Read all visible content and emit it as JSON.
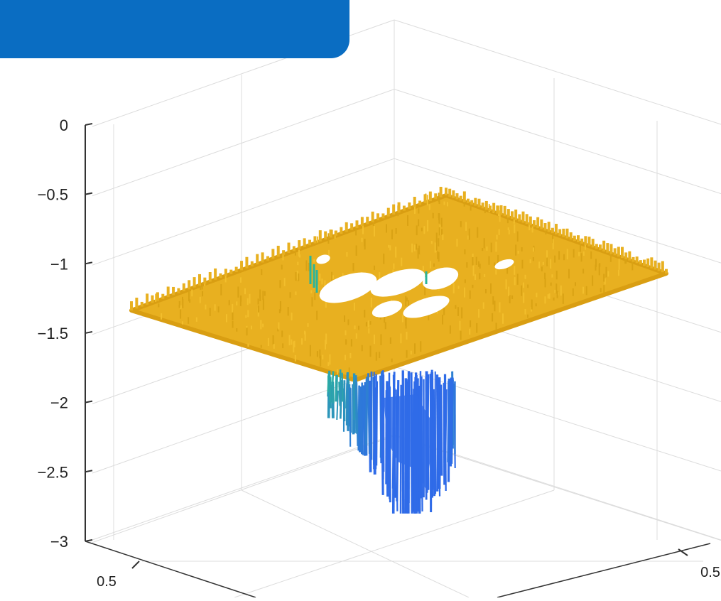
{
  "banner": {
    "text": "",
    "color": "#0a6dc2"
  },
  "chart_data": {
    "type": "surface",
    "title": "",
    "xlabel": "",
    "ylabel": "",
    "zlabel": "",
    "zlim": [
      -3,
      0
    ],
    "z_ticks": [
      0,
      -0.5,
      -1,
      -1.5,
      -2,
      -2.5,
      -3
    ],
    "z_tick_labels": [
      "0",
      "−0.5",
      "−1",
      "−1.5",
      "−2",
      "−2.5",
      "−3"
    ],
    "x_tick_labels": [
      "0.5"
    ],
    "y_tick_labels": [
      "0.5"
    ],
    "grid": true,
    "colormap": "parula",
    "surface_level": -1.3,
    "min_value": -2.8,
    "colors": {
      "plateau": "#e8b020",
      "mid": "#2bb49a",
      "low": "#2f6be8",
      "grid": "#dcdcdc",
      "axis": "#333333"
    }
  }
}
